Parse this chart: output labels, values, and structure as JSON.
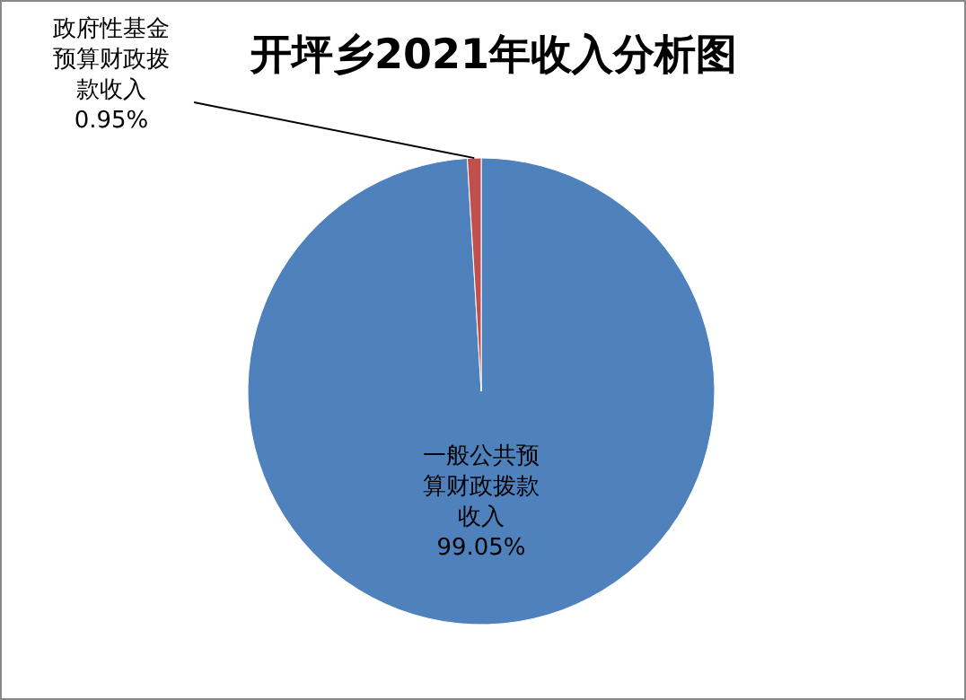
{
  "chart_data": {
    "type": "pie",
    "title": "开坪乡2021年收入分析图",
    "categories": [
      "一般公共预算财政拨款收入",
      "政府性基金预算财政拨款收入"
    ],
    "values": [
      99.05,
      0.95
    ],
    "colors": [
      "#4f81bd",
      "#c0504d"
    ],
    "value_labels": [
      "99.05%",
      "0.95%"
    ]
  }
}
